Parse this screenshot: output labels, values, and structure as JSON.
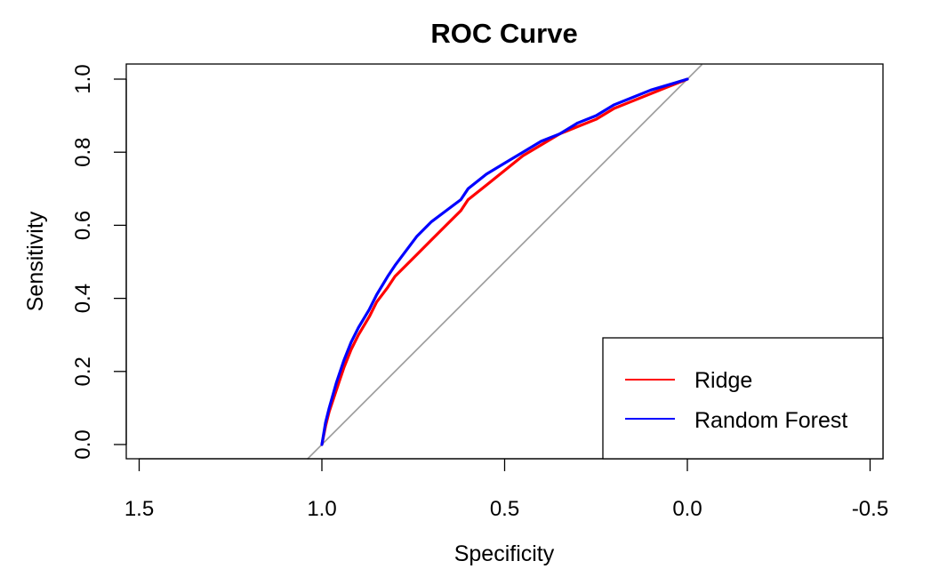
{
  "chart_data": {
    "type": "line",
    "title": "ROC Curve",
    "xlabel": "Specificity",
    "ylabel": "Sensitivity",
    "xlim": [
      1.5,
      -0.5
    ],
    "ylim": [
      0.0,
      1.0
    ],
    "x_reversed": true,
    "x_ticks": [
      1.5,
      1.0,
      0.5,
      0.0,
      -0.5
    ],
    "x_tick_labels": [
      "1.5",
      "1.0",
      "0.5",
      "0.0",
      "-0.5"
    ],
    "y_ticks": [
      0.0,
      0.2,
      0.4,
      0.6,
      0.8,
      1.0
    ],
    "y_tick_labels": [
      "0.0",
      "0.2",
      "0.4",
      "0.6",
      "0.8",
      "1.0"
    ],
    "grid": false,
    "legend_position": "bottom-right",
    "reference_line": {
      "from": [
        1.0,
        0.0
      ],
      "to": [
        0.0,
        1.0
      ],
      "color": "#999999"
    },
    "series": [
      {
        "name": "Ridge",
        "color": "#ff0000",
        "x": [
          1.0,
          0.99,
          0.98,
          0.96,
          0.94,
          0.92,
          0.9,
          0.87,
          0.85,
          0.82,
          0.8,
          0.77,
          0.74,
          0.7,
          0.66,
          0.62,
          0.6,
          0.55,
          0.5,
          0.45,
          0.4,
          0.35,
          0.3,
          0.25,
          0.2,
          0.15,
          0.1,
          0.05,
          0.0
        ],
        "y": [
          0.0,
          0.05,
          0.09,
          0.15,
          0.21,
          0.26,
          0.3,
          0.35,
          0.39,
          0.43,
          0.46,
          0.49,
          0.52,
          0.56,
          0.6,
          0.64,
          0.67,
          0.71,
          0.75,
          0.79,
          0.82,
          0.85,
          0.87,
          0.89,
          0.92,
          0.94,
          0.96,
          0.98,
          1.0
        ]
      },
      {
        "name": "Random Forest",
        "color": "#0000ff",
        "x": [
          1.0,
          0.99,
          0.98,
          0.96,
          0.94,
          0.92,
          0.9,
          0.87,
          0.85,
          0.82,
          0.8,
          0.77,
          0.74,
          0.7,
          0.66,
          0.62,
          0.6,
          0.55,
          0.5,
          0.45,
          0.4,
          0.35,
          0.3,
          0.25,
          0.2,
          0.15,
          0.1,
          0.05,
          0.0
        ],
        "y": [
          0.0,
          0.06,
          0.1,
          0.17,
          0.23,
          0.28,
          0.32,
          0.37,
          0.41,
          0.46,
          0.49,
          0.53,
          0.57,
          0.61,
          0.64,
          0.67,
          0.7,
          0.74,
          0.77,
          0.8,
          0.83,
          0.85,
          0.88,
          0.9,
          0.93,
          0.95,
          0.97,
          0.985,
          1.0
        ]
      }
    ]
  }
}
